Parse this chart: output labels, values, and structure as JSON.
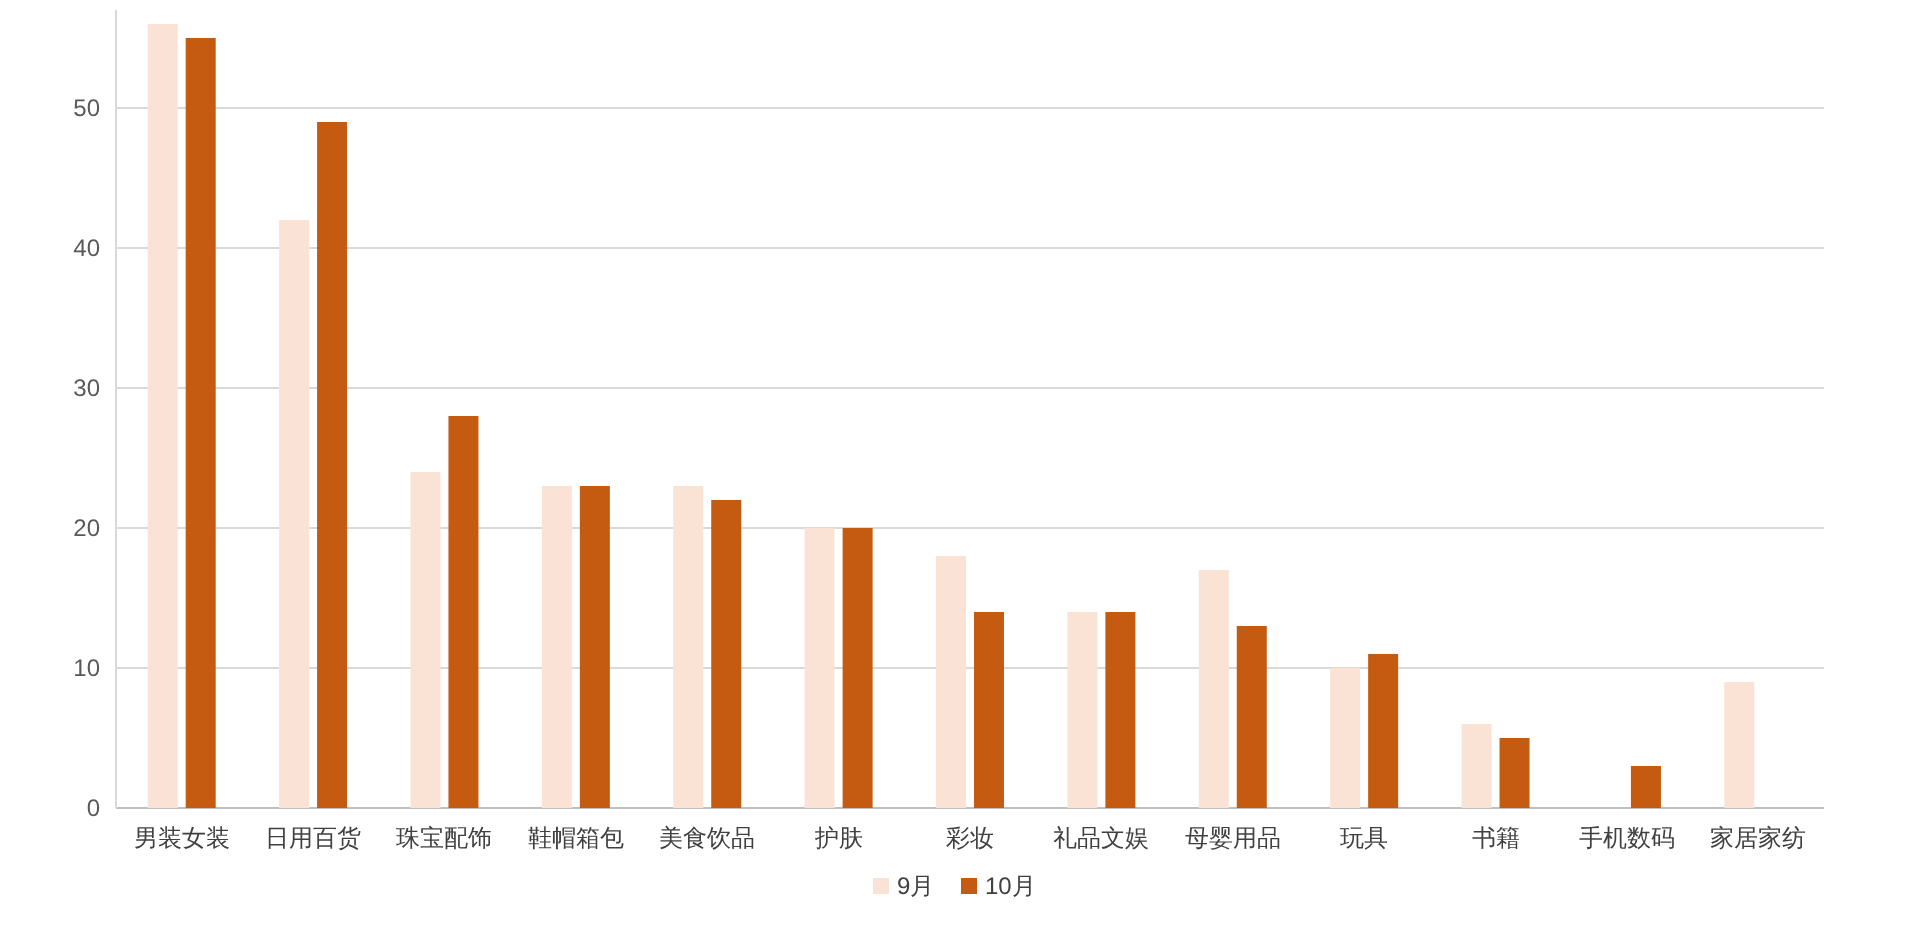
{
  "chart_data": {
    "type": "bar",
    "categories": [
      "男装女装",
      "日用百货",
      "珠宝配饰",
      "鞋帽箱包",
      "美食饮品",
      "护肤",
      "彩妆",
      "礼品文娱",
      "母婴用品",
      "玩具",
      "书籍",
      "手机数码",
      "家居家纺"
    ],
    "series": [
      {
        "name": "9月",
        "color": "#fae3d5",
        "values": [
          56,
          42,
          24,
          23,
          23,
          20,
          18,
          14,
          17,
          10,
          6,
          null,
          9
        ]
      },
      {
        "name": "10月",
        "color": "#c55a11",
        "values": [
          55,
          49,
          28,
          23,
          22,
          20,
          14,
          14,
          13,
          11,
          5,
          3,
          null
        ]
      }
    ],
    "ylim": [
      0,
      57
    ],
    "yticks": [
      0,
      10,
      20,
      30,
      40,
      50
    ],
    "grid": "y",
    "legend": "bottom"
  }
}
